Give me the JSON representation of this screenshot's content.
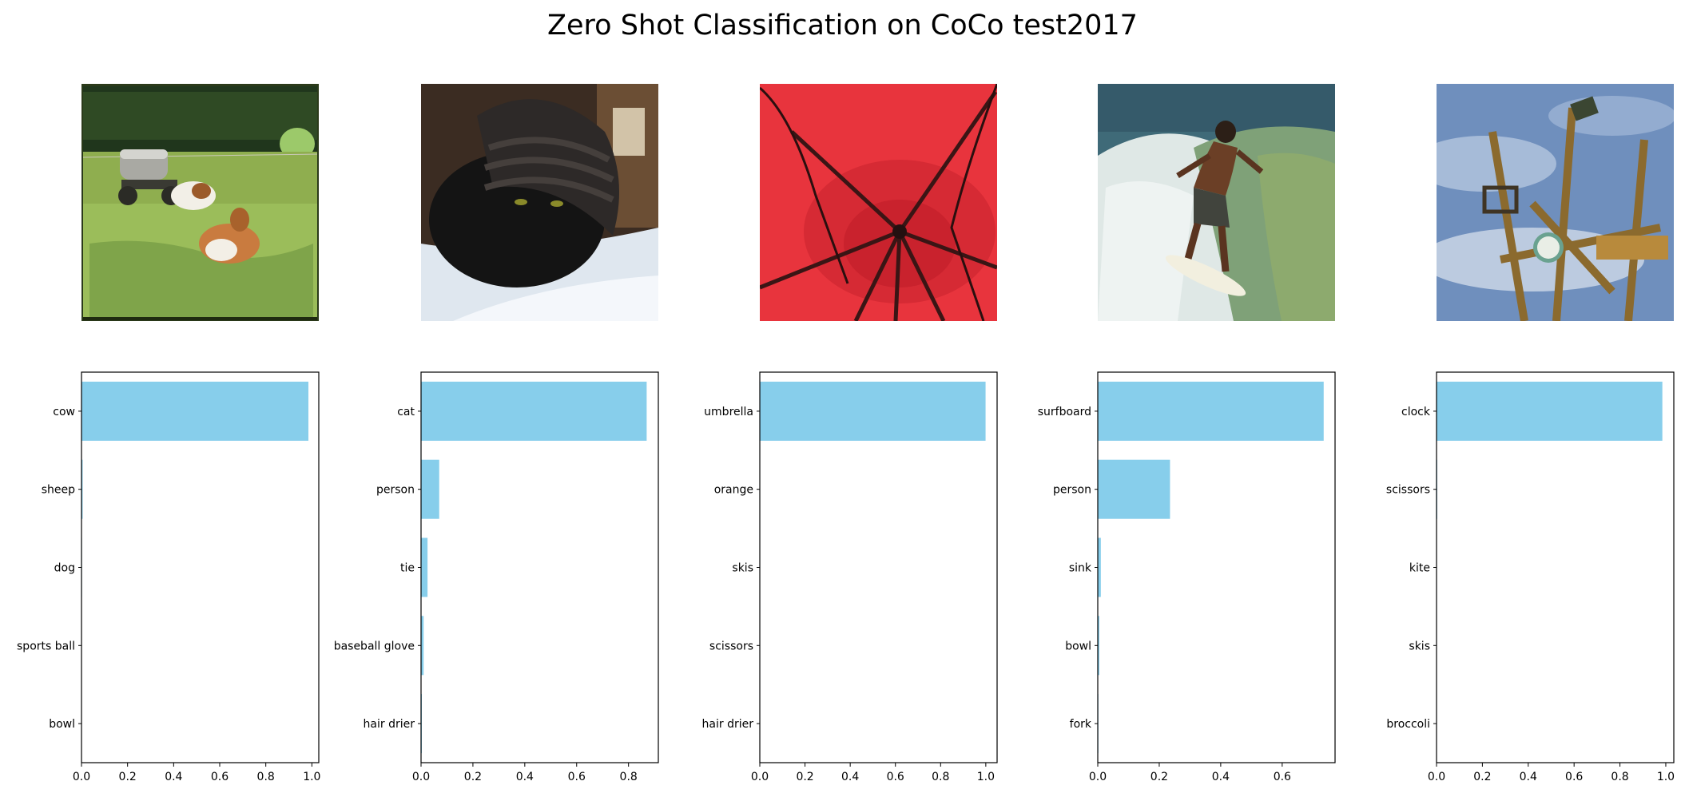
{
  "figure": {
    "title": "Zero Shot Classification on CoCo test2017"
  },
  "chart_data": [
    {
      "type": "bar",
      "orientation": "horizontal",
      "image": "cows-in-pasture-with-water-tank-trailer",
      "categories": [
        "cow",
        "sheep",
        "dog",
        "sports ball",
        "bowl"
      ],
      "values": [
        0.985,
        0.005,
        0.002,
        0.001,
        0.001
      ],
      "xlim": [
        0,
        1.03
      ],
      "xticks": [
        "0.0",
        "0.2",
        "0.4",
        "0.6",
        "0.8",
        "1.0"
      ],
      "xtick_values": [
        0,
        0.2,
        0.4,
        0.6,
        0.8,
        1.0
      ],
      "bar_color": "#87ceeb"
    },
    {
      "type": "bar",
      "orientation": "horizontal",
      "image": "black-cat-wearing-knit-hat",
      "categories": [
        "cat",
        "person",
        "tie",
        "baseball glove",
        "hair drier"
      ],
      "values": [
        0.87,
        0.07,
        0.025,
        0.01,
        0.003
      ],
      "xlim": [
        0,
        0.915
      ],
      "xticks": [
        "0.0",
        "0.2",
        "0.4",
        "0.6",
        "0.8"
      ],
      "xtick_values": [
        0,
        0.2,
        0.4,
        0.6,
        0.8
      ],
      "bar_color": "#87ceeb"
    },
    {
      "type": "bar",
      "orientation": "horizontal",
      "image": "red-umbrella-underside",
      "categories": [
        "umbrella",
        "orange",
        "skis",
        "scissors",
        "hair drier"
      ],
      "values": [
        0.999,
        0.0005,
        0.0003,
        0.0002,
        0.0001
      ],
      "xlim": [
        0,
        1.05
      ],
      "xticks": [
        "0.0",
        "0.2",
        "0.4",
        "0.6",
        "0.8",
        "1.0"
      ],
      "xtick_values": [
        0,
        0.2,
        0.4,
        0.6,
        0.8,
        1.0
      ],
      "bar_color": "#87ceeb"
    },
    {
      "type": "bar",
      "orientation": "horizontal",
      "image": "surfer-riding-wave",
      "categories": [
        "surfboard",
        "person",
        "sink",
        "bowl",
        "fork"
      ],
      "values": [
        0.735,
        0.235,
        0.01,
        0.005,
        0.002
      ],
      "xlim": [
        0,
        0.772
      ],
      "xticks": [
        "0.0",
        "0.2",
        "0.4",
        "0.6"
      ],
      "xtick_values": [
        0,
        0.2,
        0.4,
        0.6
      ],
      "bar_color": "#87ceeb"
    },
    {
      "type": "bar",
      "orientation": "horizontal",
      "image": "wooden-clock-tower-against-sky",
      "categories": [
        "clock",
        "scissors",
        "kite",
        "skis",
        "broccoli"
      ],
      "values": [
        0.985,
        0.003,
        0.001,
        0.0005,
        0.0003
      ],
      "xlim": [
        0,
        1.035
      ],
      "xticks": [
        "0.0",
        "0.2",
        "0.4",
        "0.6",
        "0.8",
        "1.0"
      ],
      "xtick_values": [
        0,
        0.2,
        0.4,
        0.6,
        0.8,
        1.0
      ],
      "bar_color": "#87ceeb"
    }
  ]
}
